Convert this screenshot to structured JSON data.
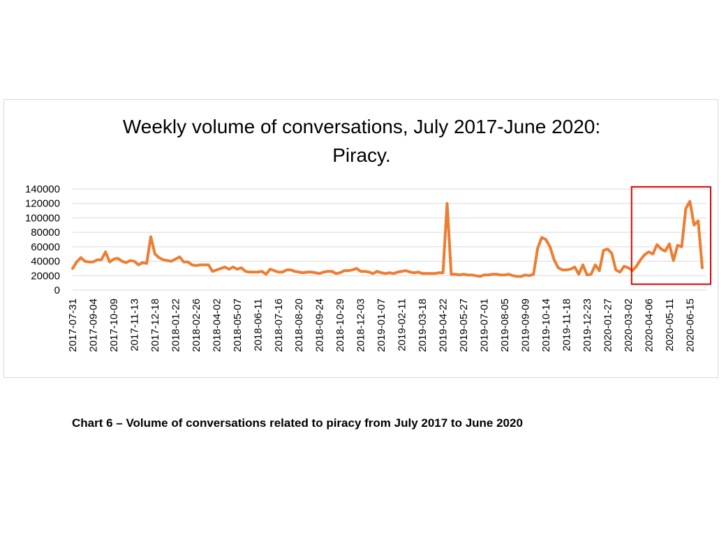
{
  "caption": "Chart 6 – Volume of conversations related to piracy from July 2017 to June 2020",
  "colors": {
    "line": "#ED7D31",
    "highlight": "#E00000",
    "grid": "#d9d9d9"
  },
  "chart_data": {
    "type": "line",
    "title_lines": [
      "Weekly volume of conversations, July 2017-June 2020:",
      "Piracy."
    ],
    "xlabel": "",
    "ylabel": "",
    "ylim": [
      0,
      140000
    ],
    "yticks": [
      0,
      20000,
      40000,
      60000,
      80000,
      100000,
      120000,
      140000
    ],
    "ytick_labels": [
      "0",
      "20000",
      "40000",
      "60000",
      "80000",
      "100000",
      "120000",
      "140000"
    ],
    "xtick_labels": [
      "2017-07-31",
      "2017-09-04",
      "2017-10-09",
      "2017-11-13",
      "2017-12-18",
      "2018-01-22",
      "2018-02-26",
      "2018-04-02",
      "2018-05-07",
      "2018-06-11",
      "2018-07-16",
      "2018-08-20",
      "2018-09-24",
      "2018-10-29",
      "2018-12-03",
      "2019-01-07",
      "2019-02-11",
      "2019-03-18",
      "2019-04-22",
      "2019-05-27",
      "2019-07-01",
      "2019-08-05",
      "2019-09-09",
      "2019-10-14",
      "2019-11-18",
      "2019-12-23",
      "2020-01-27",
      "2020-03-02",
      "2020-04-06",
      "2020-05-11",
      "2020-06-15"
    ],
    "xtick_every": 5,
    "highlight_range": {
      "from_index": 136,
      "to_index": 153,
      "ymin": 15000,
      "ymax": 143000
    },
    "series": [
      {
        "name": "Piracy",
        "values": [
          30000,
          39000,
          45000,
          40000,
          39000,
          39000,
          42000,
          42000,
          53000,
          39000,
          43000,
          44000,
          40000,
          38000,
          41000,
          40000,
          35000,
          38000,
          37000,
          74000,
          50000,
          45000,
          42000,
          41000,
          40000,
          43000,
          46000,
          39000,
          39000,
          35000,
          34000,
          35000,
          35000,
          35000,
          26000,
          28000,
          30000,
          32000,
          29000,
          32000,
          29000,
          31000,
          26000,
          25000,
          25000,
          25000,
          26000,
          22000,
          29000,
          27000,
          25000,
          25000,
          28000,
          28000,
          26000,
          25000,
          24000,
          25000,
          25000,
          24000,
          23000,
          25000,
          26000,
          26000,
          23000,
          24000,
          27000,
          27000,
          28000,
          30000,
          26000,
          26000,
          25000,
          23000,
          26000,
          24000,
          23000,
          24000,
          23000,
          25000,
          26000,
          27000,
          25000,
          24000,
          25000,
          23000,
          23000,
          23000,
          23000,
          24000,
          24000,
          120000,
          22000,
          22000,
          21000,
          22000,
          21000,
          21000,
          20000,
          19000,
          21000,
          21000,
          22000,
          22000,
          21000,
          21000,
          22000,
          20000,
          19000,
          19000,
          21000,
          20000,
          22000,
          58000,
          73000,
          70000,
          60000,
          42000,
          31000,
          28000,
          28000,
          29000,
          32000,
          22000,
          35000,
          21000,
          22000,
          35000,
          27000,
          55000,
          57000,
          51000,
          28000,
          25000,
          33000,
          31000,
          27000,
          33000,
          42000,
          49000,
          53000,
          50000,
          63000,
          57000,
          54000,
          64000,
          41000,
          62000,
          60000,
          113000,
          123000,
          90000,
          96000,
          31000
        ]
      }
    ]
  }
}
